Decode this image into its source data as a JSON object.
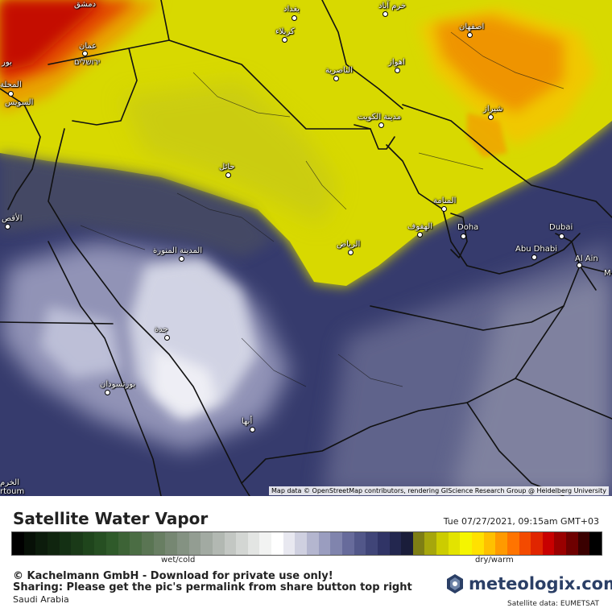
{
  "map": {
    "attribution": "Map data © OpenStreetMap contributors, rendering GIScience Research Group @ Heidelberg University",
    "labels": [
      {
        "id": "damascus",
        "text": "دمشق"
      },
      {
        "id": "baghdad",
        "text": "بغداد"
      },
      {
        "id": "khorramabad",
        "text": "خرم آباد"
      },
      {
        "id": "karbala",
        "text": "كربلاء"
      },
      {
        "id": "isfahan",
        "text": "اصفهان"
      },
      {
        "id": "amman",
        "text": "عمان"
      },
      {
        "id": "jerusalem",
        "text": "ירושלים"
      },
      {
        "id": "ahvaz",
        "text": "اهواز"
      },
      {
        "id": "beirut",
        "text": "بور"
      },
      {
        "id": "nasiriyah",
        "text": "الناصرية"
      },
      {
        "id": "mahalla",
        "text": "المحلة"
      },
      {
        "id": "suez",
        "text": "السويس"
      },
      {
        "id": "shiraz",
        "text": "شيراز"
      },
      {
        "id": "kuwait",
        "text": "مدينة الكويت"
      },
      {
        "id": "hail",
        "text": "حائل"
      },
      {
        "id": "manama",
        "text": "المنامة"
      },
      {
        "id": "luxor",
        "text": "الأقص"
      },
      {
        "id": "hofuf",
        "text": "الهفوف"
      },
      {
        "id": "doha",
        "text": "Doha"
      },
      {
        "id": "dubai",
        "text": "Dubai"
      },
      {
        "id": "riyadh",
        "text": "الرياض"
      },
      {
        "id": "medina",
        "text": "المدينة المنورة"
      },
      {
        "id": "abudhabi",
        "text": "Abu Dhabi"
      },
      {
        "id": "alain",
        "text": "Al Ain"
      },
      {
        "id": "m",
        "text": "M"
      },
      {
        "id": "jeddah",
        "text": "جدة"
      },
      {
        "id": "portsudan",
        "text": "بورتسودان"
      },
      {
        "id": "abha",
        "text": "أبها"
      },
      {
        "id": "khartoum1",
        "text": "الخرم"
      },
      {
        "id": "khartoum2",
        "text": "rtoum"
      }
    ]
  },
  "footer": {
    "title": "Satellite Water Vapor",
    "timestamp": "Tue 07/27/2021, 09:15am GMT+03",
    "scale": {
      "left_label": "wet/cold",
      "right_label": "dry/warm",
      "colors": [
        "#000000",
        "#071007",
        "#0c1c0c",
        "#10250f",
        "#143014",
        "#1a3a18",
        "#1f451c",
        "#264f22",
        "#2f5a2a",
        "#3d6336",
        "#4b6d44",
        "#5a7553",
        "#687e62",
        "#768772",
        "#849282",
        "#939d92",
        "#a2aaa2",
        "#b2b8b2",
        "#c3c7c3",
        "#d3d6d3",
        "#e3e5e3",
        "#f2f3f2",
        "#ffffff",
        "#e8e8f0",
        "#cfd0e0",
        "#b4b6cf",
        "#9a9dbf",
        "#8084ad",
        "#676b9b",
        "#525789",
        "#404578",
        "#303466",
        "#23274f",
        "#1a1d3a",
        "#7e7e14",
        "#a6a60c",
        "#cccc00",
        "#e3e300",
        "#f5f500",
        "#ffe100",
        "#ffc000",
        "#ff9a00",
        "#ff7400",
        "#f34a00",
        "#e02500",
        "#c80000",
        "#9a0000",
        "#6e0000",
        "#3a0000",
        "#000000"
      ]
    },
    "copyright": "© Kachelmann GmbH - Download for private use only!",
    "sharing": "Sharing: Please get the pic's permalink from share button top right",
    "region": "Saudi Arabia",
    "brand": "meteologix.com",
    "satellite_credit": "Satellite data: EUMETSAT"
  }
}
